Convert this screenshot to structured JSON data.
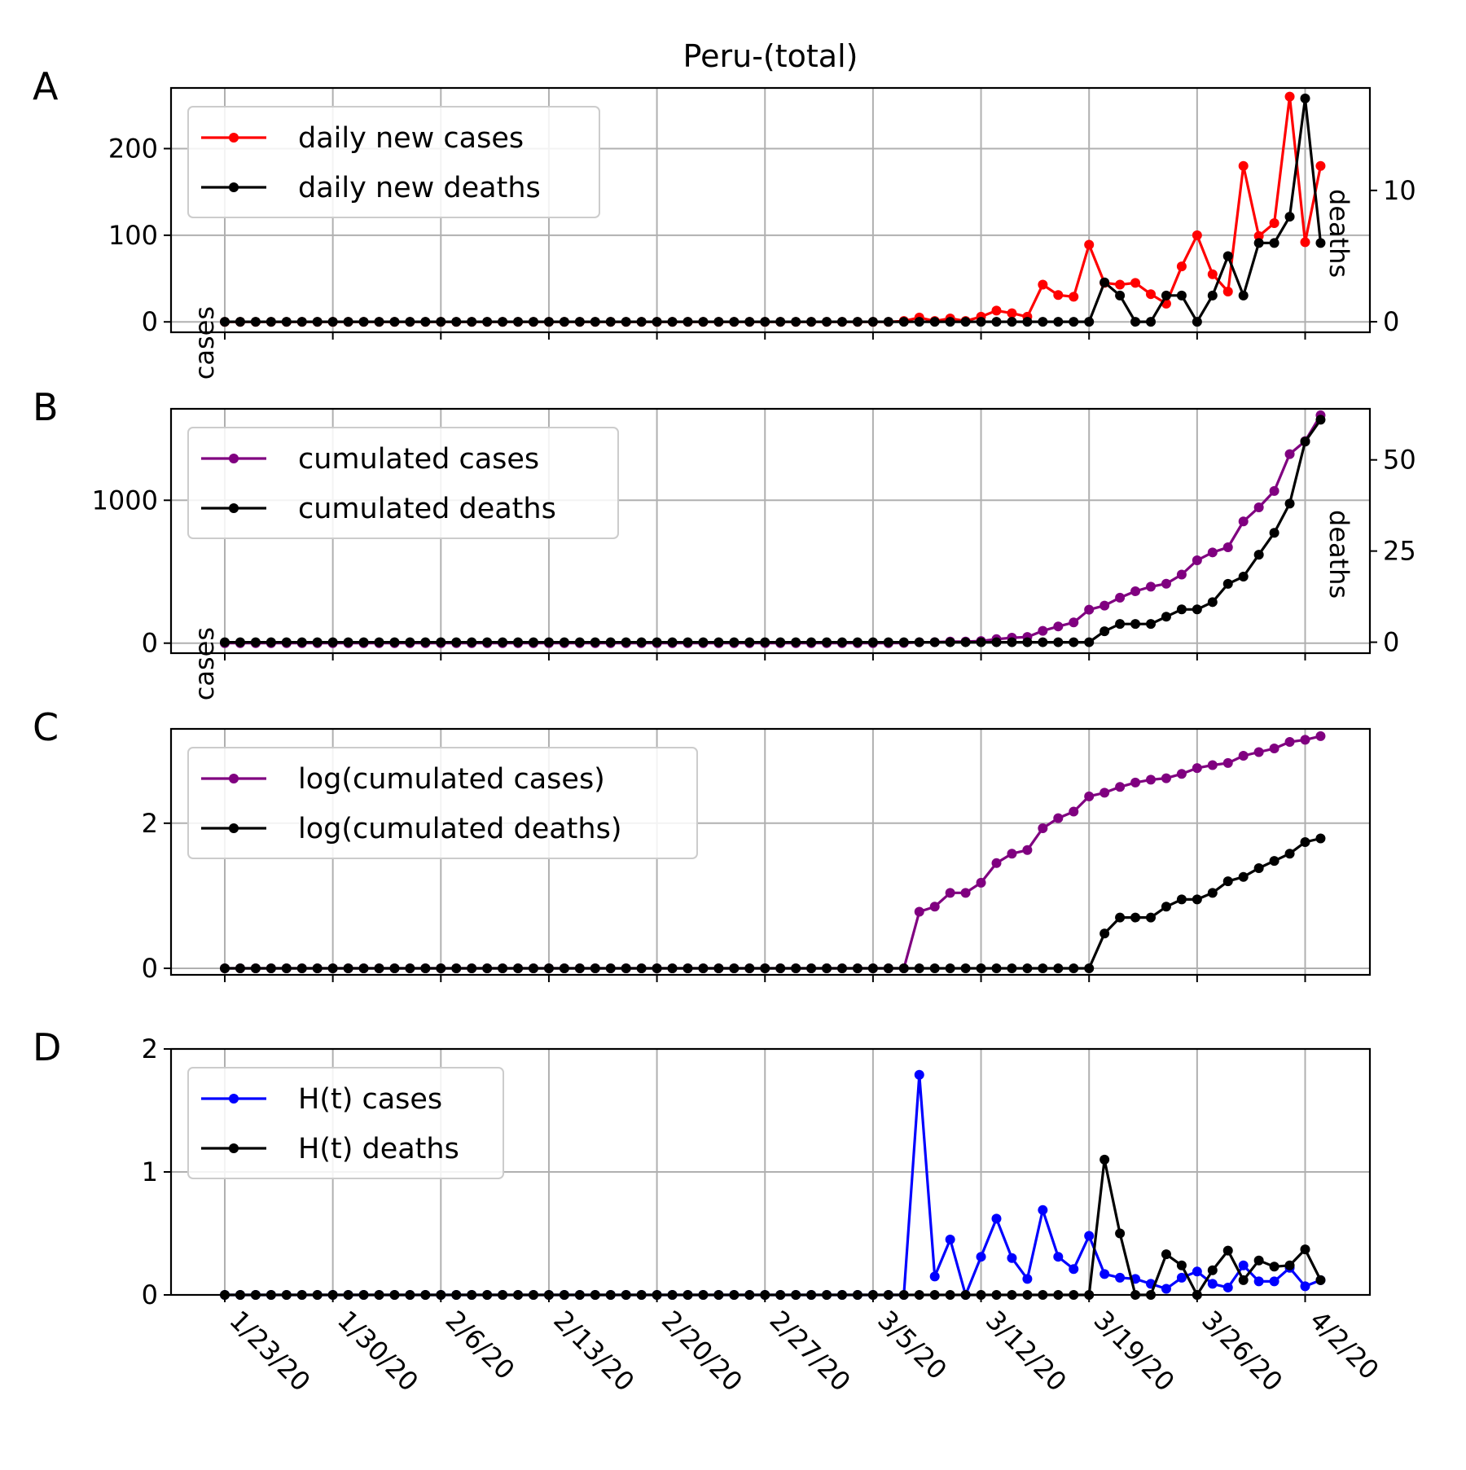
{
  "chart_data": [
    {
      "panel": "A",
      "title": "Peru-(total)",
      "type": "line",
      "ylabel": "cases",
      "ylabel_right": "deaths",
      "ylim": [
        -12,
        270
      ],
      "yticks": [
        0,
        100,
        200
      ],
      "ylim_right": [
        -0.8,
        17.8
      ],
      "yticks_right": [
        0,
        10
      ],
      "legend_placement": "upper left",
      "grid": true,
      "series": [
        {
          "name": "daily new cases",
          "color": "#ff0000",
          "axis": "left",
          "values": [
            0,
            0,
            0,
            0,
            0,
            0,
            0,
            0,
            0,
            0,
            0,
            0,
            0,
            0,
            0,
            0,
            0,
            0,
            0,
            0,
            0,
            0,
            0,
            0,
            0,
            0,
            0,
            0,
            0,
            0,
            0,
            0,
            0,
            0,
            0,
            0,
            0,
            0,
            0,
            0,
            0,
            0,
            0,
            0,
            1,
            5,
            1,
            4,
            1,
            6,
            13,
            10,
            6,
            43,
            31,
            29,
            89,
            45,
            43,
            45,
            32,
            21,
            64,
            100,
            55,
            35,
            180,
            99,
            114,
            260,
            92,
            180
          ]
        },
        {
          "name": "daily new deaths",
          "color": "#000000",
          "axis": "right",
          "values": [
            0,
            0,
            0,
            0,
            0,
            0,
            0,
            0,
            0,
            0,
            0,
            0,
            0,
            0,
            0,
            0,
            0,
            0,
            0,
            0,
            0,
            0,
            0,
            0,
            0,
            0,
            0,
            0,
            0,
            0,
            0,
            0,
            0,
            0,
            0,
            0,
            0,
            0,
            0,
            0,
            0,
            0,
            0,
            0,
            0,
            0,
            0,
            0,
            0,
            0,
            0,
            0,
            0,
            0,
            0,
            0,
            0,
            3,
            2,
            0,
            0,
            2,
            2,
            0,
            2,
            5,
            2,
            6,
            6,
            8,
            17,
            6
          ]
        }
      ]
    },
    {
      "panel": "B",
      "type": "line",
      "ylabel": "cases",
      "ylabel_right": "deaths",
      "ylim": [
        -70,
        1640
      ],
      "yticks": [
        0,
        1000
      ],
      "ylim_right": [
        -3,
        64
      ],
      "yticks_right": [
        0,
        25,
        50
      ],
      "legend_placement": "upper left",
      "grid": true,
      "series": [
        {
          "name": "cumulated cases",
          "color": "#800080",
          "axis": "left",
          "values": [
            0,
            0,
            0,
            0,
            0,
            0,
            0,
            0,
            0,
            0,
            0,
            0,
            0,
            0,
            0,
            0,
            0,
            0,
            0,
            0,
            0,
            0,
            0,
            0,
            0,
            0,
            0,
            0,
            0,
            0,
            0,
            0,
            0,
            0,
            0,
            0,
            0,
            0,
            0,
            0,
            0,
            0,
            0,
            0,
            1,
            6,
            7,
            11,
            11,
            15,
            28,
            38,
            43,
            86,
            117,
            145,
            234,
            263,
            318,
            363,
            395,
            416,
            480,
            580,
            635,
            671,
            852,
            950,
            1065,
            1323,
            1414,
            1595
          ]
        },
        {
          "name": "cumulated deaths",
          "color": "#000000",
          "axis": "right",
          "values": [
            0,
            0,
            0,
            0,
            0,
            0,
            0,
            0,
            0,
            0,
            0,
            0,
            0,
            0,
            0,
            0,
            0,
            0,
            0,
            0,
            0,
            0,
            0,
            0,
            0,
            0,
            0,
            0,
            0,
            0,
            0,
            0,
            0,
            0,
            0,
            0,
            0,
            0,
            0,
            0,
            0,
            0,
            0,
            0,
            0,
            0,
            0,
            0,
            0,
            0,
            0,
            0,
            0,
            0,
            0,
            0,
            0,
            3,
            5,
            5,
            5,
            7,
            9,
            9,
            11,
            16,
            18,
            24,
            30,
            38,
            55,
            61
          ]
        }
      ]
    },
    {
      "panel": "C",
      "type": "line",
      "ylim": [
        -0.09,
        3.3
      ],
      "yticks": [
        0,
        2
      ],
      "legend_placement": "upper left",
      "grid": true,
      "series": [
        {
          "name": "log(cumulated cases)",
          "color": "#800080",
          "axis": "left",
          "values": [
            0,
            0,
            0,
            0,
            0,
            0,
            0,
            0,
            0,
            0,
            0,
            0,
            0,
            0,
            0,
            0,
            0,
            0,
            0,
            0,
            0,
            0,
            0,
            0,
            0,
            0,
            0,
            0,
            0,
            0,
            0,
            0,
            0,
            0,
            0,
            0,
            0,
            0,
            0,
            0,
            0,
            0,
            0,
            0,
            0,
            0.78,
            0.85,
            1.04,
            1.04,
            1.18,
            1.45,
            1.58,
            1.63,
            1.93,
            2.07,
            2.16,
            2.37,
            2.42,
            2.5,
            2.56,
            2.6,
            2.62,
            2.68,
            2.76,
            2.8,
            2.83,
            2.93,
            2.98,
            3.03,
            3.12,
            3.15,
            3.2
          ]
        },
        {
          "name": "log(cumulated deaths)",
          "color": "#000000",
          "axis": "left",
          "values": [
            0,
            0,
            0,
            0,
            0,
            0,
            0,
            0,
            0,
            0,
            0,
            0,
            0,
            0,
            0,
            0,
            0,
            0,
            0,
            0,
            0,
            0,
            0,
            0,
            0,
            0,
            0,
            0,
            0,
            0,
            0,
            0,
            0,
            0,
            0,
            0,
            0,
            0,
            0,
            0,
            0,
            0,
            0,
            0,
            0,
            0,
            0,
            0,
            0,
            0,
            0,
            0,
            0,
            0,
            0,
            0,
            0,
            0.48,
            0.7,
            0.7,
            0.7,
            0.85,
            0.95,
            0.95,
            1.04,
            1.2,
            1.26,
            1.38,
            1.48,
            1.58,
            1.74,
            1.79
          ]
        }
      ]
    },
    {
      "panel": "D",
      "type": "line",
      "ylim": [
        0,
        2
      ],
      "yticks": [
        0,
        1,
        2
      ],
      "legend_placement": "upper left",
      "grid": true,
      "series": [
        {
          "name": "H(t) cases",
          "color": "#0000ff",
          "axis": "left",
          "values": [
            0,
            0,
            0,
            0,
            0,
            0,
            0,
            0,
            0,
            0,
            0,
            0,
            0,
            0,
            0,
            0,
            0,
            0,
            0,
            0,
            0,
            0,
            0,
            0,
            0,
            0,
            0,
            0,
            0,
            0,
            0,
            0,
            0,
            0,
            0,
            0,
            0,
            0,
            0,
            0,
            0,
            0,
            0,
            0,
            0,
            1.79,
            0.15,
            0.45,
            0,
            0.31,
            0.62,
            0.3,
            0.13,
            0.69,
            0.31,
            0.21,
            0.48,
            0.17,
            0.14,
            0.13,
            0.09,
            0.05,
            0.14,
            0.19,
            0.09,
            0.06,
            0.24,
            0.11,
            0.11,
            0.22,
            0.07,
            0.12
          ]
        },
        {
          "name": "H(t) deaths",
          "color": "#000000",
          "axis": "left",
          "values": [
            0,
            0,
            0,
            0,
            0,
            0,
            0,
            0,
            0,
            0,
            0,
            0,
            0,
            0,
            0,
            0,
            0,
            0,
            0,
            0,
            0,
            0,
            0,
            0,
            0,
            0,
            0,
            0,
            0,
            0,
            0,
            0,
            0,
            0,
            0,
            0,
            0,
            0,
            0,
            0,
            0,
            0,
            0,
            0,
            0,
            0,
            0,
            0,
            0,
            0,
            0,
            0,
            0,
            0,
            0,
            0,
            0,
            1.1,
            0.5,
            0,
            0,
            0.33,
            0.24,
            0,
            0.2,
            0.36,
            0.12,
            0.28,
            0.23,
            0.24,
            0.37,
            0.12
          ]
        }
      ]
    }
  ],
  "x_tick_labels": [
    "1/23/20",
    "1/30/20",
    "2/6/20",
    "2/13/20",
    "2/20/20",
    "2/27/20",
    "3/5/20",
    "3/12/20",
    "3/19/20",
    "3/26/20",
    "4/2/20"
  ]
}
